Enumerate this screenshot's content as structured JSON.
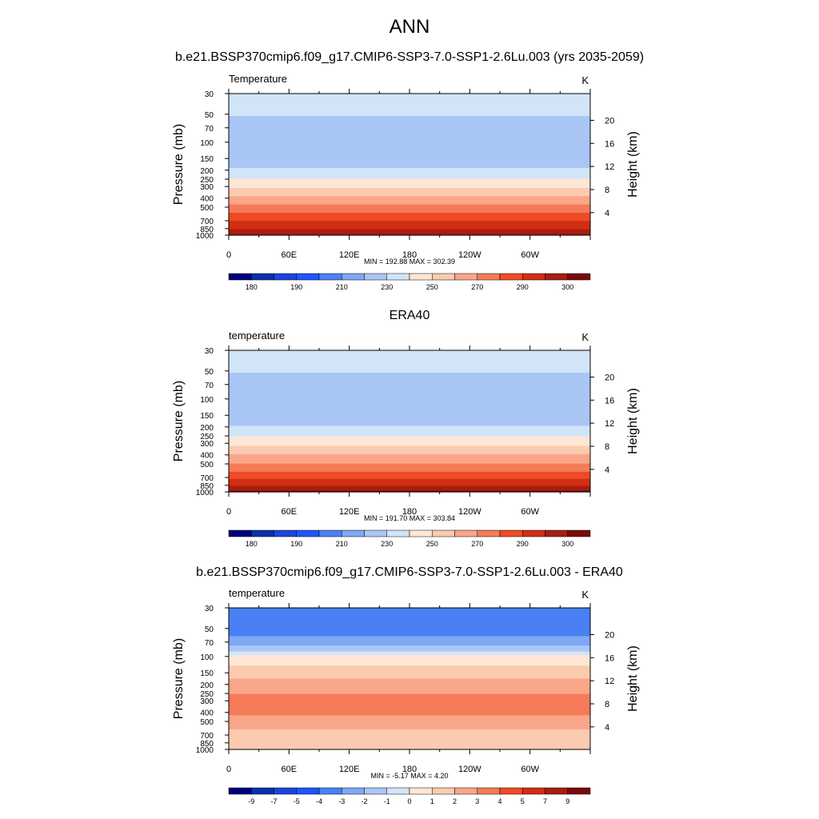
{
  "page": {
    "title": "ANN",
    "subtitle": "b.e21.BSSP370cmip6.f09_g17.CMIP6-SSP3-7.0-SSP1-2.6Lu.003 (yrs 2035-2059)"
  },
  "chart_data": [
    {
      "type": "heatmap",
      "title": "",
      "field_label": "Temperature",
      "units": "K",
      "ylabel": "Pressure (mb)",
      "y2label": "Height (km)",
      "xticks": [
        "0",
        "60E",
        "120E",
        "180",
        "120W",
        "60W"
      ],
      "xtick_lon": [
        0,
        60,
        120,
        180,
        240,
        300
      ],
      "xlim": [
        0,
        360
      ],
      "yticks": [
        30,
        50,
        70,
        100,
        150,
        200,
        250,
        300,
        400,
        500,
        700,
        850,
        1000
      ],
      "ylim": [
        1000,
        30
      ],
      "y_log": true,
      "y2ticks": [
        4,
        8,
        12,
        16,
        20
      ],
      "stats": "MIN = 192.88  MAX = 302.39",
      "colorbar": [
        "#00007a",
        "#0a2fb0",
        "#1b44df",
        "#1f55ff",
        "#4a80f5",
        "#7ea7f5",
        "#a9c6f5",
        "#d2e4f7",
        "#fde6d5",
        "#fbcbb0",
        "#f9a689",
        "#f57b58",
        "#ef4a26",
        "#d12e13",
        "#a81d0e",
        "#7a0a08"
      ],
      "colorbar_labels": [
        "180",
        "190",
        "210",
        "230",
        "250",
        "270",
        "290",
        "300"
      ],
      "profile": [
        [
          30,
          218
        ],
        [
          40,
          214
        ],
        [
          55,
          209
        ],
        [
          70,
          205
        ],
        [
          100,
          202
        ],
        [
          130,
          203
        ],
        [
          170,
          207
        ],
        [
          210,
          213
        ],
        [
          250,
          221
        ],
        [
          300,
          229
        ],
        [
          350,
          236
        ],
        [
          400,
          243
        ],
        [
          500,
          253
        ],
        [
          600,
          262
        ],
        [
          700,
          269
        ],
        [
          800,
          276
        ],
        [
          850,
          279
        ],
        [
          925,
          284
        ],
        [
          1000,
          290
        ]
      ]
    },
    {
      "type": "heatmap",
      "title": "ERA40",
      "field_label": "temperature",
      "units": "K",
      "ylabel": "Pressure (mb)",
      "y2label": "Height (km)",
      "xticks": [
        "0",
        "60E",
        "120E",
        "180",
        "120W",
        "60W"
      ],
      "xtick_lon": [
        0,
        60,
        120,
        180,
        240,
        300
      ],
      "xlim": [
        0,
        360
      ],
      "yticks": [
        30,
        50,
        70,
        100,
        150,
        200,
        250,
        300,
        400,
        500,
        700,
        850,
        1000
      ],
      "ylim": [
        1000,
        30
      ],
      "y_log": true,
      "y2ticks": [
        4,
        8,
        12,
        16,
        20
      ],
      "stats": "MIN = 191.70  MAX = 303.84",
      "colorbar": [
        "#00007a",
        "#0a2fb0",
        "#1b44df",
        "#1f55ff",
        "#4a80f5",
        "#7ea7f5",
        "#a9c6f5",
        "#d2e4f7",
        "#fde6d5",
        "#fbcbb0",
        "#f9a689",
        "#f57b58",
        "#ef4a26",
        "#d12e13",
        "#a81d0e",
        "#7a0a08"
      ],
      "colorbar_labels": [
        "180",
        "190",
        "210",
        "230",
        "250",
        "270",
        "290",
        "300"
      ],
      "profile": [
        [
          30,
          218
        ],
        [
          40,
          214
        ],
        [
          55,
          209
        ],
        [
          70,
          205
        ],
        [
          100,
          202
        ],
        [
          130,
          203
        ],
        [
          170,
          207
        ],
        [
          210,
          212
        ],
        [
          250,
          219
        ],
        [
          300,
          227
        ],
        [
          350,
          234
        ],
        [
          400,
          241
        ],
        [
          500,
          251
        ],
        [
          600,
          260
        ],
        [
          700,
          268
        ],
        [
          800,
          275
        ],
        [
          850,
          278
        ],
        [
          925,
          284
        ],
        [
          1000,
          292
        ]
      ]
    },
    {
      "type": "heatmap",
      "title": "b.e21.BSSP370cmip6.f09_g17.CMIP6-SSP3-7.0-SSP1-2.6Lu.003 - ERA40",
      "field_label": "temperature",
      "units": "K",
      "ylabel": "Pressure (mb)",
      "y2label": "Height (km)",
      "xticks": [
        "0",
        "60E",
        "120E",
        "180",
        "120W",
        "60W"
      ],
      "xtick_lon": [
        0,
        60,
        120,
        180,
        240,
        300
      ],
      "xlim": [
        0,
        360
      ],
      "yticks": [
        30,
        50,
        70,
        100,
        150,
        200,
        250,
        300,
        400,
        500,
        700,
        850,
        1000
      ],
      "ylim": [
        1000,
        30
      ],
      "y_log": true,
      "y2ticks": [
        4,
        8,
        12,
        16,
        20
      ],
      "stats": "MIN =  -5.17  MAX =   4.20",
      "colorbar": [
        "#00007a",
        "#0a2fb0",
        "#1b44df",
        "#1f55ff",
        "#4a80f5",
        "#7ea7f5",
        "#a9c6f5",
        "#d2e4f7",
        "#fde6d5",
        "#fbcbb0",
        "#f9a689",
        "#f57b58",
        "#ef4a26",
        "#d12e13",
        "#a81d0e",
        "#7a0a08"
      ],
      "colorbar_labels": [
        "-9",
        "-7",
        "-5",
        "-4",
        "-3",
        "-2",
        "-1",
        "0",
        "1",
        "2",
        "3",
        "4",
        "5",
        "7",
        "9"
      ],
      "profile": [
        [
          30,
          -3.8
        ],
        [
          50,
          -3.5
        ],
        [
          70,
          -2.5
        ],
        [
          85,
          -1.5
        ],
        [
          100,
          0.3
        ],
        [
          150,
          1.6
        ],
        [
          200,
          2.5
        ],
        [
          300,
          3.4
        ],
        [
          400,
          3.2
        ],
        [
          500,
          2.6
        ],
        [
          600,
          2.0
        ],
        [
          700,
          1.6
        ],
        [
          850,
          1.0
        ],
        [
          1000,
          1.8
        ]
      ]
    }
  ]
}
